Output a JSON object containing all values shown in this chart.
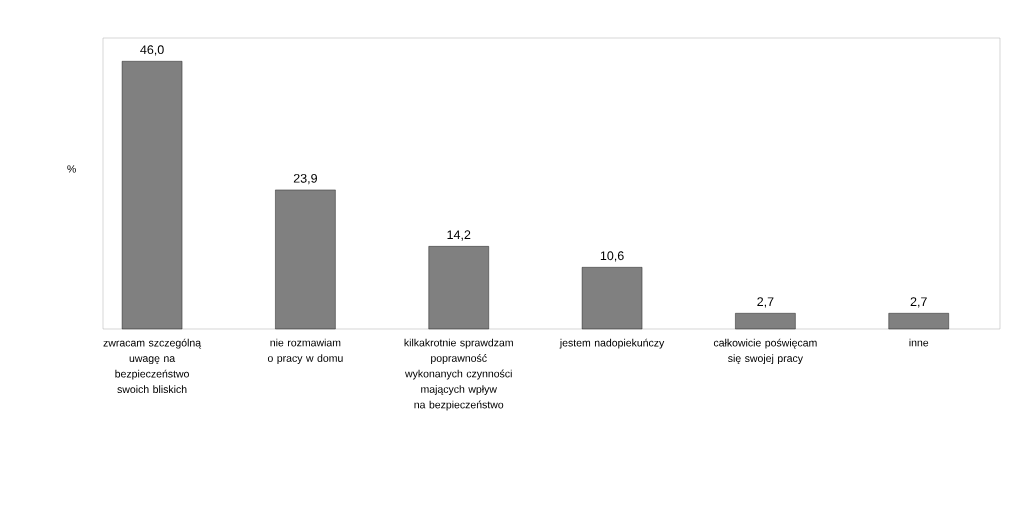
{
  "chart_data": {
    "type": "bar",
    "ylabel": "%",
    "categories": [
      "zwracam szczególną uwagę na bezpieczeństwo swoich bliskich",
      "nie  rozmawiam o pracy w domu",
      "kilkakrotnie sprawdzam poprawność wykonanych czynności mających wpływ na bezpieczeństwo",
      "jestem nadopiekuńczy",
      "całkowicie poświęcam się swojej pracy",
      "inne"
    ],
    "values": [
      46.0,
      23.9,
      14.2,
      10.6,
      2.7,
      2.7
    ],
    "value_labels": [
      "46,0",
      "23,9",
      "14,2",
      "10,6",
      "2,7",
      "2,7"
    ],
    "color": "#808080",
    "ylim": [
      0,
      50
    ]
  }
}
